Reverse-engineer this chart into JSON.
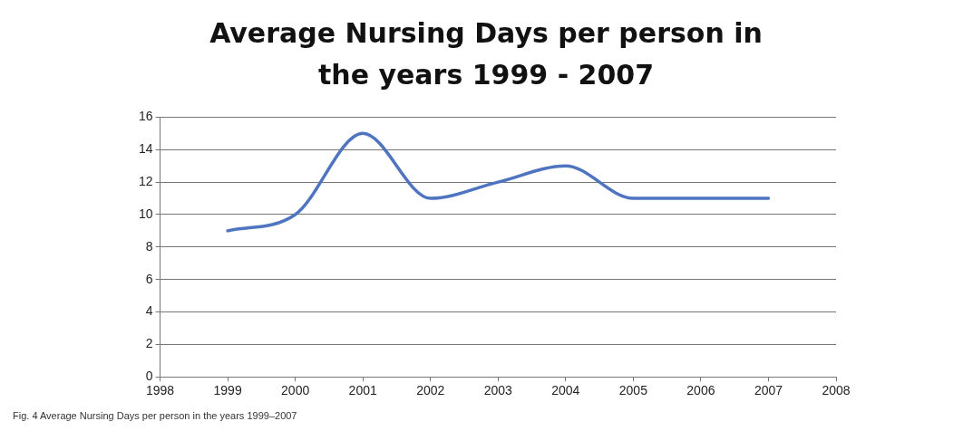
{
  "chart_data": {
    "type": "line",
    "title": "Average Nursing Days per person in the years 1999 - 2007",
    "x": [
      1999,
      2000,
      2001,
      2002,
      2003,
      2004,
      2005,
      2006,
      2007
    ],
    "series": [
      {
        "color": "#4f74c0",
        "values": [
          9,
          10,
          15,
          11,
          12,
          13,
          11,
          11,
          11
        ]
      }
    ],
    "xlim": [
      1998,
      2008
    ],
    "xticks": [
      1998,
      1999,
      2000,
      2001,
      2002,
      2003,
      2004,
      2005,
      2006,
      2007,
      2008
    ],
    "ylim": [
      0,
      16
    ],
    "yticks": [
      0,
      2,
      4,
      6,
      8,
      10,
      12,
      14,
      16
    ],
    "grid": "y",
    "legend": false,
    "marker": "none",
    "line_style": "solid",
    "annotations": [
      "Fig. 4 Average Nursing Days per person in the years 1999–2007"
    ]
  }
}
